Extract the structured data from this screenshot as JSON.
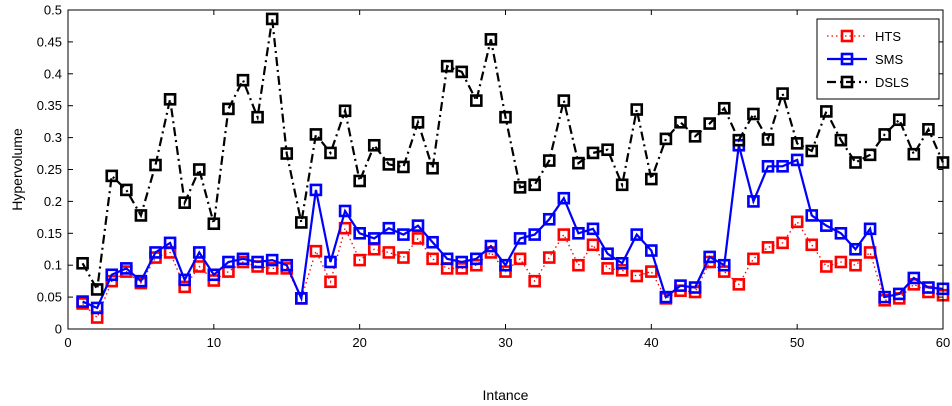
{
  "chart_data": {
    "type": "line",
    "title": "",
    "xlabel": "Intance",
    "ylabel": "Hypervolume",
    "xlim": [
      0,
      60
    ],
    "ylim": [
      0,
      0.5
    ],
    "xticks": [
      0,
      10,
      20,
      30,
      40,
      50,
      60
    ],
    "yticks": [
      0,
      0.05,
      0.1,
      0.15,
      0.2,
      0.25,
      0.3,
      0.35,
      0.4,
      0.45,
      0.5
    ],
    "ytick_labels": [
      "0",
      "0.05",
      "0.1",
      "0.15",
      "0.2",
      "0.25",
      "0.3",
      "0.35",
      "0.4",
      "0.45",
      "0.5"
    ],
    "grid": false,
    "legend_position": "top-right",
    "x": [
      1,
      2,
      3,
      4,
      5,
      6,
      7,
      8,
      9,
      10,
      11,
      12,
      13,
      14,
      15,
      16,
      17,
      18,
      19,
      20,
      21,
      22,
      23,
      24,
      25,
      26,
      27,
      28,
      29,
      30,
      31,
      32,
      33,
      34,
      35,
      36,
      37,
      38,
      39,
      40,
      41,
      42,
      43,
      44,
      45,
      46,
      47,
      48,
      49,
      50,
      51,
      52,
      53,
      54,
      55,
      56,
      57,
      58,
      59,
      60
    ],
    "series": [
      {
        "name": "HTS",
        "color": "#ff0000",
        "line_style": "dotted",
        "marker": "square",
        "values": [
          0.04,
          0.018,
          0.075,
          0.09,
          0.072,
          0.112,
          0.12,
          0.066,
          0.098,
          0.076,
          0.09,
          0.105,
          0.098,
          0.095,
          0.095,
          0.048,
          0.122,
          0.074,
          0.158,
          0.108,
          0.125,
          0.12,
          0.112,
          0.142,
          0.11,
          0.095,
          0.095,
          0.1,
          0.12,
          0.09,
          0.11,
          0.075,
          0.112,
          0.148,
          0.1,
          0.132,
          0.095,
          0.092,
          0.083,
          0.09,
          0.048,
          0.06,
          0.058,
          0.105,
          0.09,
          0.07,
          0.11,
          0.128,
          0.135,
          0.168,
          0.132,
          0.098,
          0.105,
          0.1,
          0.12,
          0.045,
          0.048,
          0.07,
          0.058,
          0.053
        ]
      },
      {
        "name": "SMS",
        "color": "#0000ff",
        "line_style": "solid",
        "marker": "square",
        "values": [
          0.043,
          0.033,
          0.085,
          0.095,
          0.075,
          0.12,
          0.135,
          0.077,
          0.12,
          0.085,
          0.105,
          0.11,
          0.105,
          0.108,
          0.1,
          0.048,
          0.218,
          0.105,
          0.185,
          0.15,
          0.142,
          0.158,
          0.148,
          0.162,
          0.136,
          0.11,
          0.105,
          0.11,
          0.13,
          0.1,
          0.142,
          0.148,
          0.172,
          0.205,
          0.15,
          0.157,
          0.118,
          0.103,
          0.148,
          0.123,
          0.05,
          0.068,
          0.065,
          0.113,
          0.1,
          0.288,
          0.2,
          0.255,
          0.255,
          0.265,
          0.178,
          0.162,
          0.15,
          0.125,
          0.157,
          0.05,
          0.055,
          0.08,
          0.065,
          0.063
        ]
      },
      {
        "name": "DSLS",
        "color": "#000000",
        "line_style": "dashdot",
        "marker": "square",
        "values": [
          0.103,
          0.062,
          0.24,
          0.218,
          0.178,
          0.257,
          0.36,
          0.198,
          0.25,
          0.165,
          0.345,
          0.39,
          0.332,
          0.486,
          0.275,
          0.167,
          0.305,
          0.276,
          0.342,
          0.232,
          0.288,
          0.258,
          0.254,
          0.324,
          0.252,
          0.412,
          0.403,
          0.358,
          0.454,
          0.332,
          0.222,
          0.226,
          0.264,
          0.358,
          0.26,
          0.276,
          0.281,
          0.226,
          0.344,
          0.235,
          0.298,
          0.324,
          0.302,
          0.322,
          0.346,
          0.296,
          0.337,
          0.297,
          0.369,
          0.291,
          0.279,
          0.341,
          0.296,
          0.261,
          0.273,
          0.305,
          0.328,
          0.274,
          0.313,
          0.261
        ]
      }
    ]
  }
}
